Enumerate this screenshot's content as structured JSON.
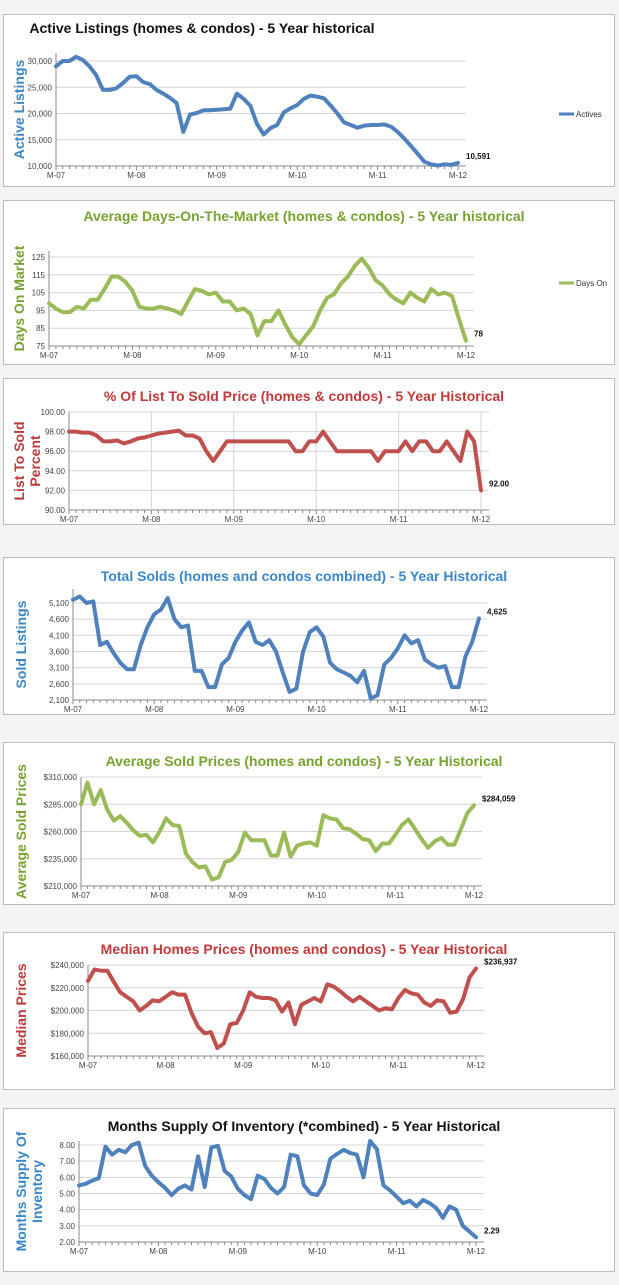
{
  "colors": {
    "blue": "#4f81bd",
    "blue_text": "#3b86c9",
    "green": "#9bbb59",
    "green_text": "#76a230",
    "red": "#c0504d",
    "red_text": "#c0393b",
    "title_black": "#111111",
    "grid": "#d4d4d4"
  },
  "x_labels": [
    "M-07",
    "M-08",
    "M-09",
    "M-10",
    "M-11",
    "M-12"
  ],
  "chart_data": [
    {
      "type": "line",
      "title": "Active Listings (homes & condos) - 5 Year historical",
      "ylabel": "Active Listings",
      "series_color": "blue",
      "title_color": "title_black",
      "ylabel_color": "blue_text",
      "legend": "Actives",
      "legend_placement": "right",
      "end_label": "10,591",
      "y_ticks": [
        "10,000",
        "15,000",
        "20,000",
        "25,000",
        "30,000"
      ],
      "ylim": [
        10000,
        30000
      ],
      "xlim": [
        "M-07",
        "M-12"
      ],
      "vertical_grid": false,
      "values": [
        29000,
        30000,
        30000,
        30800,
        30200,
        29000,
        27300,
        24500,
        24500,
        24800,
        25800,
        27000,
        27100,
        26000,
        25600,
        24500,
        23800,
        23000,
        22000,
        16500,
        19800,
        20100,
        20600,
        20600,
        20700,
        20800,
        20900,
        23800,
        22800,
        21500,
        18000,
        16000,
        17200,
        17800,
        20200,
        21000,
        21600,
        22800,
        23400,
        23200,
        22900,
        21500,
        20000,
        18300,
        17800,
        17300,
        17700,
        17800,
        17800,
        17900,
        17500,
        16500,
        15200,
        13800,
        12300,
        10800,
        10300,
        10100,
        10300,
        10200,
        10591
      ]
    },
    {
      "type": "line",
      "title": "Average Days-On-The-Market (homes & condos) - 5 Year historical",
      "ylabel": "Days On Market",
      "series_color": "green",
      "title_color": "green_text",
      "ylabel_color": "green_text",
      "legend": "Days On",
      "legend_placement": "right",
      "end_label": "78",
      "y_ticks": [
        "75",
        "85",
        "95",
        "105",
        "115",
        "125"
      ],
      "ylim": [
        75,
        125
      ],
      "xlim": [
        "M-07",
        "M-12"
      ],
      "vertical_grid": false,
      "values": [
        99,
        96,
        94,
        94,
        97,
        96,
        101,
        101,
        107,
        114,
        114,
        111,
        106,
        97,
        96,
        96,
        97,
        96,
        95,
        93,
        100,
        107,
        106,
        104,
        105,
        100,
        100,
        95,
        96,
        93,
        81,
        89,
        89,
        95,
        87,
        80,
        76,
        81,
        86,
        95,
        102,
        104,
        110,
        114,
        120,
        124,
        119,
        112,
        109,
        104,
        101,
        99,
        105,
        102,
        100,
        107,
        104,
        105,
        103,
        90,
        78
      ]
    },
    {
      "type": "line",
      "title": "% Of List To Sold Price (homes & condos) - 5 Year Historical",
      "ylabel": [
        "List To Sold",
        "Percent"
      ],
      "series_color": "red",
      "title_color": "red_text",
      "ylabel_color": "red_text",
      "end_label": "92.00",
      "y_ticks": [
        "90.00",
        "92.00",
        "94.00",
        "96.00",
        "98.00",
        "100.00"
      ],
      "ylim": [
        90,
        100
      ],
      "xlim": [
        "M-07",
        "M-12"
      ],
      "vertical_grid": true,
      "values": [
        98,
        98,
        97.9,
        97.9,
        97.6,
        97,
        97,
        97.1,
        96.8,
        97,
        97.3,
        97.4,
        97.6,
        97.8,
        97.9,
        98,
        98.1,
        97.6,
        97.6,
        97.3,
        96,
        95,
        96,
        97,
        97,
        97,
        97,
        97,
        97,
        97,
        97,
        97,
        97,
        96,
        96,
        97,
        97,
        98,
        97,
        96,
        96,
        96,
        96,
        96,
        96,
        95,
        96,
        96,
        96,
        97,
        96,
        97,
        97,
        96,
        96,
        97,
        96,
        95,
        98,
        97,
        92
      ]
    },
    {
      "type": "line",
      "title": "Total Solds (homes and condos combined) - 5 Year Historical",
      "ylabel": "Sold Listings",
      "series_color": "blue",
      "title_color": "blue_text",
      "ylabel_color": "blue_text",
      "end_label": "4,625",
      "y_ticks": [
        "2,100",
        "2,600",
        "3,100",
        "3,600",
        "4,100",
        "4,600",
        "5,100"
      ],
      "ylim": [
        2100,
        5100
      ],
      "xlim": [
        "M-07",
        "M-12"
      ],
      "vertical_grid": false,
      "values": [
        5200,
        5300,
        5100,
        5150,
        3800,
        3900,
        3550,
        3250,
        3050,
        3050,
        3800,
        4350,
        4750,
        4900,
        5250,
        4600,
        4350,
        4400,
        3000,
        3000,
        2500,
        2500,
        3200,
        3400,
        3900,
        4250,
        4500,
        3900,
        3800,
        3950,
        3600,
        2950,
        2350,
        2450,
        3600,
        4200,
        4350,
        4050,
        3250,
        3050,
        2950,
        2850,
        2650,
        3000,
        2150,
        2250,
        3200,
        3400,
        3700,
        4100,
        3850,
        3950,
        3350,
        3200,
        3100,
        3150,
        2500,
        2500,
        3450,
        3900,
        4625
      ]
    },
    {
      "type": "line",
      "title": "Average Sold Prices (homes and condos) - 5 Year Historical",
      "ylabel": "Average Sold Prices",
      "series_color": "green",
      "title_color": "green_text",
      "ylabel_color": "green_text",
      "end_label": "$284,059",
      "y_ticks": [
        "$210,000",
        "$235,000",
        "$260,000",
        "$285,000",
        "$310,000"
      ],
      "ylim": [
        210000,
        310000
      ],
      "xlim": [
        "M-07",
        "M-12"
      ],
      "vertical_grid": false,
      "values": [
        285000,
        305000,
        285000,
        298000,
        280000,
        270000,
        274000,
        268000,
        261000,
        256000,
        257000,
        250000,
        260000,
        272000,
        266000,
        265000,
        240000,
        232000,
        227000,
        228000,
        216000,
        218000,
        232000,
        234000,
        241000,
        259000,
        252000,
        252000,
        252000,
        238000,
        238000,
        259000,
        237000,
        247000,
        249000,
        250000,
        247000,
        275000,
        272000,
        271000,
        263000,
        262000,
        258000,
        253000,
        252000,
        242000,
        249000,
        249000,
        257000,
        266000,
        271000,
        262000,
        253000,
        245000,
        251000,
        254000,
        248000,
        248000,
        262000,
        277000,
        284059
      ]
    },
    {
      "type": "line",
      "title": "Median Homes Prices (homes and condos) - 5 Year Historical",
      "ylabel": "Median Prices",
      "series_color": "red",
      "title_color": "red_text",
      "ylabel_color": "red_text",
      "end_label": "$236,937",
      "y_ticks": [
        "$160,000",
        "$180,000",
        "$200,000",
        "$220,000",
        "$240,000"
      ],
      "ylim": [
        160000,
        240000
      ],
      "xlim": [
        "M-07",
        "M-12"
      ],
      "vertical_grid": false,
      "values": [
        226000,
        236000,
        235000,
        235000,
        225000,
        216000,
        212000,
        208000,
        200000,
        204000,
        209000,
        208000,
        212000,
        216000,
        214000,
        214000,
        198000,
        186000,
        180000,
        181000,
        167000,
        171000,
        188000,
        189000,
        200000,
        216000,
        212000,
        211000,
        211000,
        209000,
        199000,
        207000,
        188000,
        205000,
        208000,
        211000,
        208000,
        223000,
        221000,
        217000,
        212000,
        208000,
        212000,
        208000,
        204000,
        200000,
        202000,
        201000,
        211000,
        218000,
        215000,
        214000,
        207000,
        204000,
        209000,
        208000,
        198000,
        199000,
        210000,
        229000,
        236937
      ]
    },
    {
      "type": "line",
      "title": "Months Supply Of Inventory (*combined) - 5 Year Historical",
      "ylabel": [
        "Months Supply Of",
        "Inventory"
      ],
      "series_color": "blue",
      "title_color": "title_black",
      "ylabel_color": "blue_text",
      "end_label": "2.29",
      "y_ticks": [
        "2.00",
        "3.00",
        "4.00",
        "5.00",
        "6.00",
        "7.00",
        "8.00"
      ],
      "ylim": [
        2,
        8
      ],
      "xlim": [
        "M-07",
        "M-12"
      ],
      "vertical_grid": false,
      "values": [
        5.5,
        5.6,
        5.8,
        5.95,
        7.9,
        7.4,
        7.7,
        7.55,
        8.0,
        8.15,
        6.7,
        6.1,
        5.7,
        5.35,
        4.9,
        5.3,
        5.5,
        5.25,
        7.3,
        5.4,
        7.85,
        7.95,
        6.4,
        6.05,
        5.3,
        4.9,
        4.65,
        6.1,
        5.9,
        5.35,
        5.0,
        5.4,
        7.4,
        7.3,
        5.5,
        5.0,
        4.9,
        5.55,
        7.15,
        7.45,
        7.7,
        7.5,
        7.4,
        6.0,
        8.25,
        7.75,
        5.5,
        5.2,
        4.8,
        4.4,
        4.55,
        4.2,
        4.6,
        4.4,
        4.1,
        3.5,
        4.2,
        4.0,
        3.0,
        2.65,
        2.29
      ]
    }
  ]
}
